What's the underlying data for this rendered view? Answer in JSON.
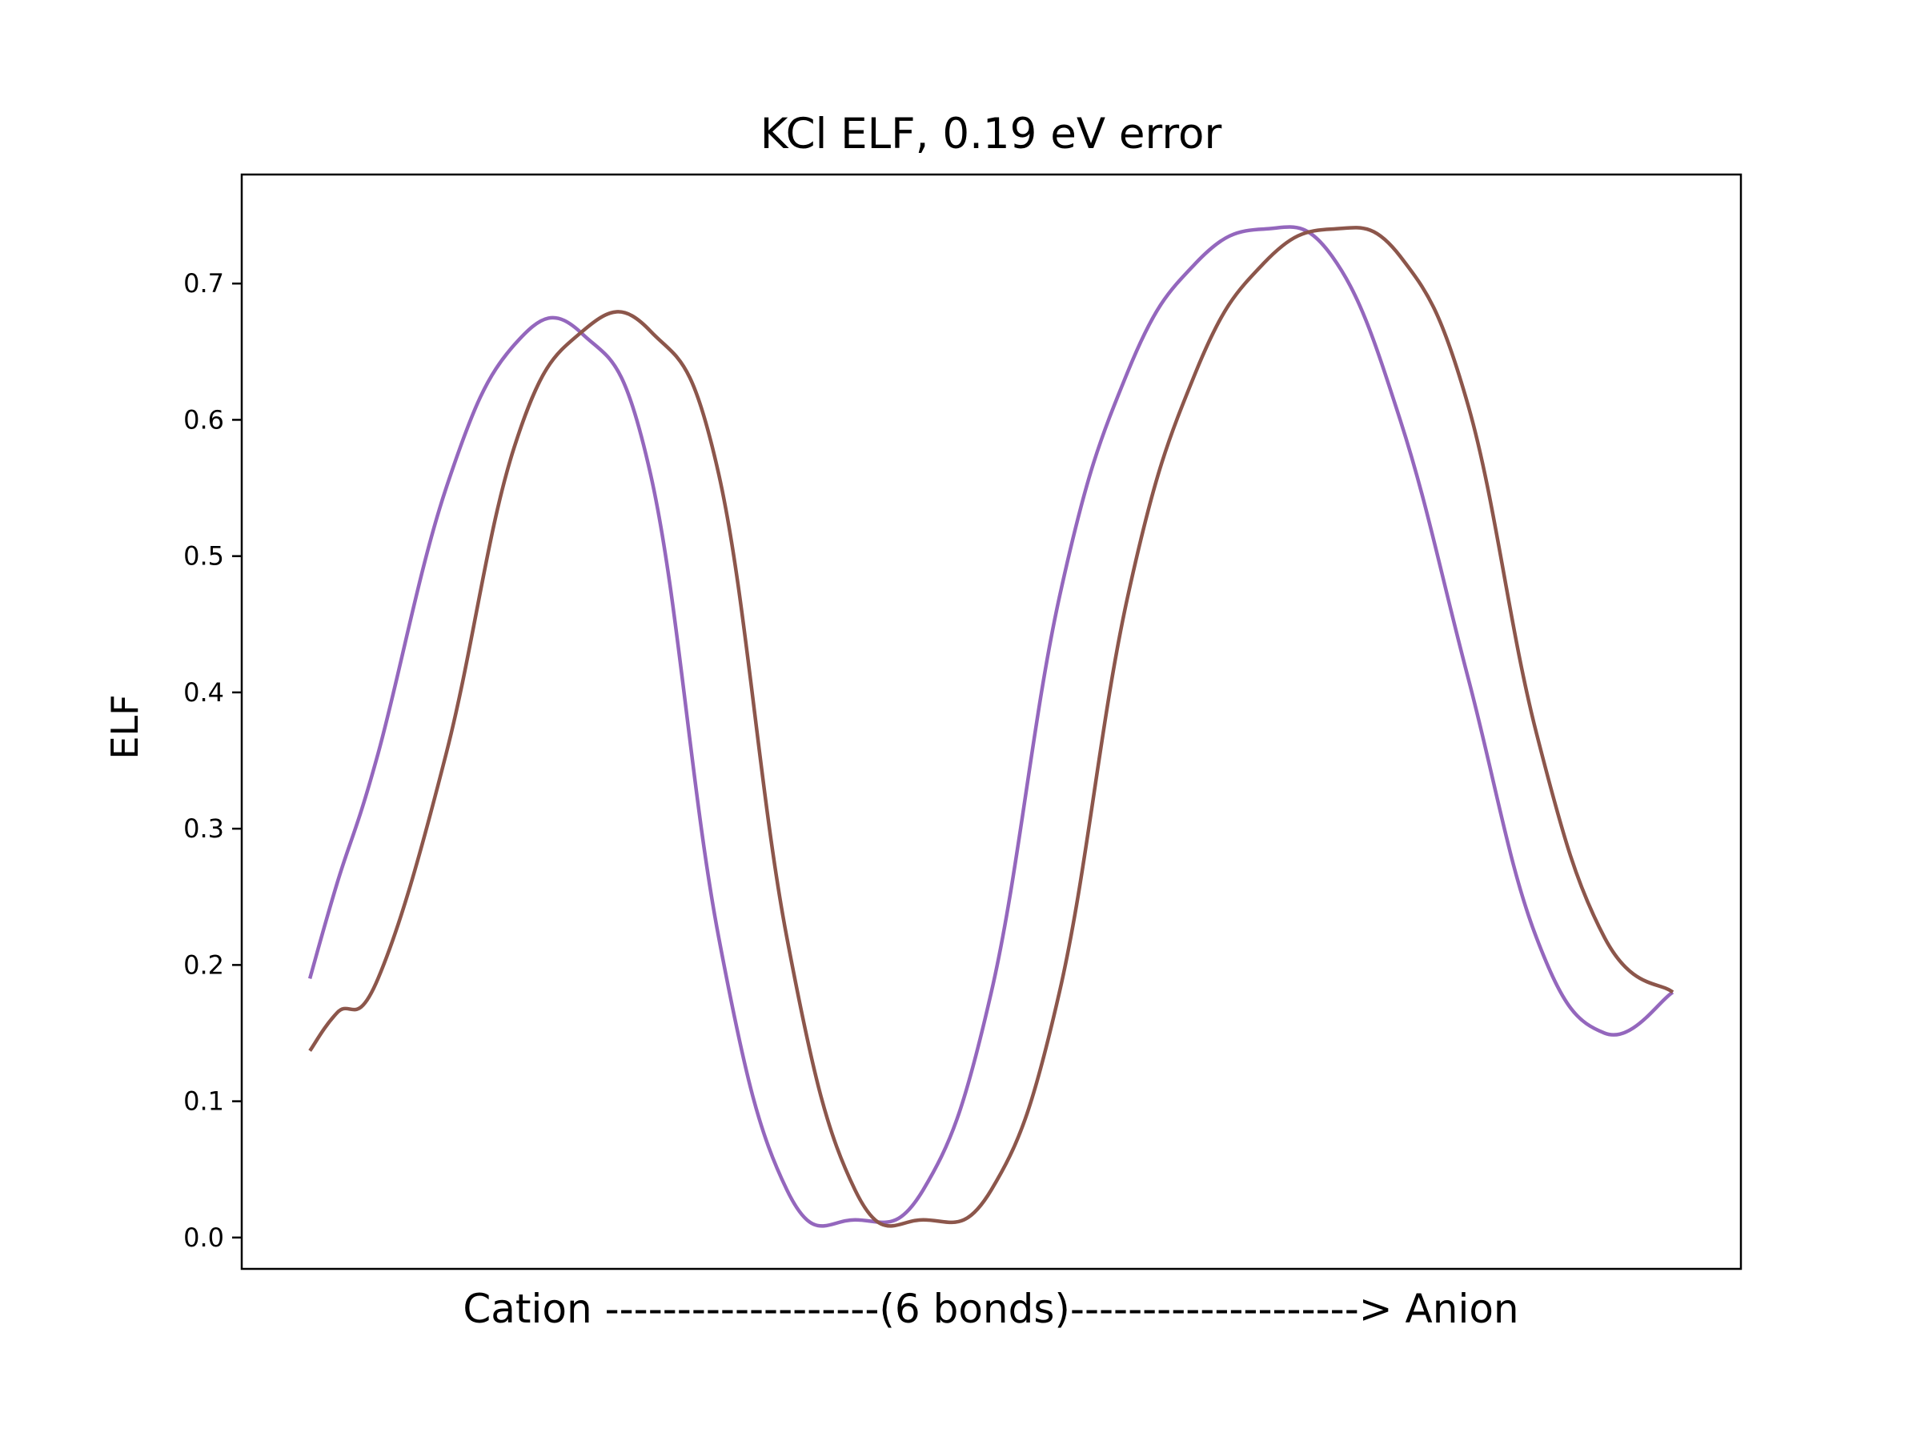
{
  "chart_data": {
    "type": "line",
    "title": "KCl ELF, 0.19 eV error",
    "xlabel": "Cation -------------------(6 bonds)--------------------> Anion",
    "ylabel": "ELF",
    "xlim": [
      -0.05,
      1.05
    ],
    "ylim": [
      -0.023,
      0.78
    ],
    "yticks": [
      "0.0",
      "0.1",
      "0.2",
      "0.3",
      "0.4",
      "0.5",
      "0.6",
      "0.7"
    ],
    "grid": false,
    "series": [
      {
        "color": "#9467bd",
        "x": [
          0.0,
          0.02,
          0.05,
          0.1,
          0.15,
          0.2,
          0.25,
          0.3,
          0.35,
          0.4,
          0.45,
          0.5,
          0.55,
          0.6,
          0.65,
          0.7,
          0.75,
          0.8,
          0.85,
          0.9,
          0.95,
          1.0
        ],
        "values": [
          0.19,
          0.26,
          0.355,
          0.55,
          0.655,
          0.663,
          0.56,
          0.22,
          0.035,
          0.013,
          0.035,
          0.18,
          0.47,
          0.635,
          0.715,
          0.74,
          0.72,
          0.6,
          0.41,
          0.22,
          0.15,
          0.18
        ]
      },
      {
        "color": "#8c564b",
        "x": [
          0.0,
          0.02,
          0.05,
          0.1,
          0.15,
          0.2,
          0.25,
          0.3,
          0.35,
          0.4,
          0.45,
          0.5,
          0.55,
          0.6,
          0.65,
          0.7,
          0.75,
          0.8,
          0.85,
          0.9,
          0.95,
          1.0
        ],
        "values": [
          0.137,
          0.165,
          0.19,
          0.355,
          0.58,
          0.665,
          0.665,
          0.56,
          0.22,
          0.035,
          0.013,
          0.035,
          0.18,
          0.47,
          0.635,
          0.715,
          0.74,
          0.72,
          0.61,
          0.37,
          0.22,
          0.18
        ]
      }
    ]
  }
}
